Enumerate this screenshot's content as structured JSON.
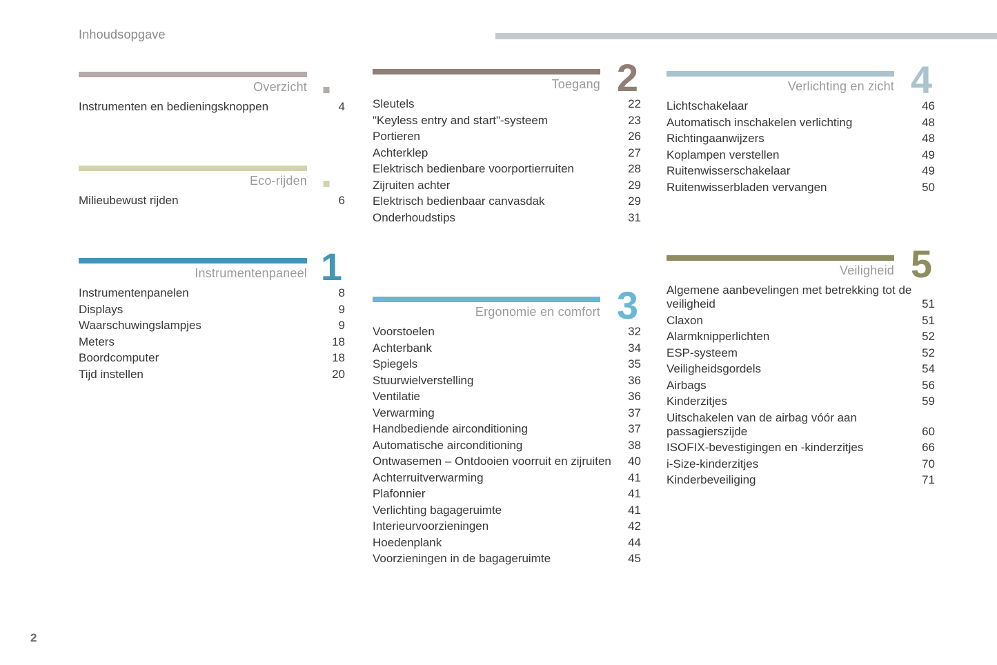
{
  "page": {
    "title": "Inhoudsopgave",
    "footer_page_number": "2",
    "top_rule_color": "#c5c9cc"
  },
  "columns": [
    {
      "sections": [
        {
          "title": "Overzicht",
          "accent": "#b5aaaa",
          "badge_type": "square",
          "badge": "",
          "entries": [
            {
              "label": "Instrumenten en bedieningsknoppen",
              "page": "4"
            }
          ]
        },
        {
          "title": "Eco-rijden",
          "accent": "#d2d3ab",
          "badge_type": "square",
          "badge": "",
          "entries": [
            {
              "label": "Milieubewust rijden",
              "page": "6"
            }
          ]
        },
        {
          "title": "Instrumentenpaneel",
          "accent": "#4497b4",
          "badge_type": "number",
          "badge": "1",
          "entries": [
            {
              "label": "Instrumentenpanelen",
              "page": "8"
            },
            {
              "label": "Displays",
              "page": "9"
            },
            {
              "label": "Waarschuwingslampjes",
              "page": "9"
            },
            {
              "label": "Meters",
              "page": "18"
            },
            {
              "label": "Boordcomputer",
              "page": "18"
            },
            {
              "label": "Tijd instellen",
              "page": "20"
            }
          ]
        }
      ]
    },
    {
      "sections": [
        {
          "title": "Toegang",
          "accent": "#8f7f76",
          "badge_type": "number",
          "badge": "2",
          "entries": [
            {
              "label": "Sleutels",
              "page": "22"
            },
            {
              "label": "\"Keyless entry and start\"-systeem",
              "page": "23"
            },
            {
              "label": "Portieren",
              "page": "26"
            },
            {
              "label": "Achterklep",
              "page": "27"
            },
            {
              "label": "Elektrisch bedienbare voorportierruiten",
              "page": "28"
            },
            {
              "label": "Zijruiten achter",
              "page": "29"
            },
            {
              "label": "Elektrisch bedienbaar canvasdak",
              "page": "29"
            },
            {
              "label": "Onderhoudstips",
              "page": "31"
            }
          ]
        },
        {
          "title": "Ergonomie en comfort",
          "accent": "#69b8d3",
          "badge_type": "number",
          "badge": "3",
          "entries": [
            {
              "label": "Voorstoelen",
              "page": "32"
            },
            {
              "label": "Achterbank",
              "page": "34"
            },
            {
              "label": "Spiegels",
              "page": "35"
            },
            {
              "label": "Stuurwielverstelling",
              "page": "36"
            },
            {
              "label": "Ventilatie",
              "page": "36"
            },
            {
              "label": "Verwarming",
              "page": "37"
            },
            {
              "label": "Handbediende airconditioning",
              "page": "37"
            },
            {
              "label": "Automatische airconditioning",
              "page": "38"
            },
            {
              "label": "Ontwasemen – Ontdooien voorruit en zijruiten",
              "page": "40"
            },
            {
              "label": "Achterruitverwarming",
              "page": "41"
            },
            {
              "label": "Plafonnier",
              "page": "41"
            },
            {
              "label": "Verlichting bagageruimte",
              "page": "41"
            },
            {
              "label": "Interieurvoorzieningen",
              "page": "42"
            },
            {
              "label": "Hoedenplank",
              "page": "44"
            },
            {
              "label": "Voorzieningen in de bagageruimte",
              "page": "45"
            }
          ]
        }
      ]
    },
    {
      "sections": [
        {
          "title": "Verlichting en zicht",
          "accent": "#a9c4cc",
          "badge_type": "number",
          "badge": "4",
          "entries": [
            {
              "label": "Lichtschakelaar",
              "page": "46"
            },
            {
              "label": "Automatisch inschakelen verlichting",
              "page": "48"
            },
            {
              "label": "Richtingaanwijzers",
              "page": "48"
            },
            {
              "label": "Koplampen verstellen",
              "page": "49"
            },
            {
              "label": "Ruitenwisserschakelaar",
              "page": "49"
            },
            {
              "label": "Ruitenwisserbladen vervangen",
              "page": "50"
            }
          ]
        },
        {
          "title": "Veiligheid",
          "accent": "#8d8d5f",
          "badge_type": "number",
          "badge": "5",
          "entries": [
            {
              "label": "Algemene aanbevelingen met betrekking tot de veiligheid",
              "page": "51"
            },
            {
              "label": "Claxon",
              "page": "51"
            },
            {
              "label": "Alarmknipperlichten",
              "page": "52"
            },
            {
              "label": "ESP-systeem",
              "page": "52"
            },
            {
              "label": "Veiligheidsgordels",
              "page": "54"
            },
            {
              "label": "Airbags",
              "page": "56"
            },
            {
              "label": "Kinderzitjes",
              "page": "59"
            },
            {
              "label": "Uitschakelen van de airbag vóór aan passagierszijde",
              "page": "60"
            },
            {
              "label": "ISOFIX-bevestigingen en -kinderzitjes",
              "page": "66"
            },
            {
              "label": "i-Size-kinderzitjes",
              "page": "70"
            },
            {
              "label": "Kinderbeveiliging",
              "page": "71"
            }
          ]
        }
      ]
    }
  ]
}
